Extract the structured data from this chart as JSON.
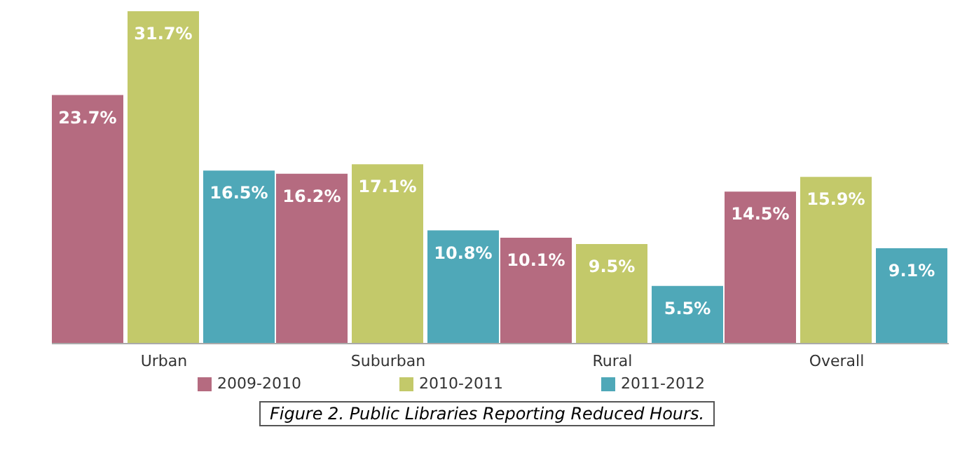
{
  "chart_data": {
    "type": "bar",
    "categories": [
      "Urban",
      "Suburban",
      "Rural",
      "Overall"
    ],
    "series": [
      {
        "name": "2009-2010",
        "color": "#b56b80",
        "values": [
          23.7,
          16.2,
          10.1,
          14.5
        ],
        "value_labels": [
          "23.7%",
          "16.2%",
          "10.1%",
          "14.5%"
        ]
      },
      {
        "name": "2010-2011",
        "color": "#c3c96a",
        "values": [
          31.7,
          17.1,
          9.5,
          15.9
        ],
        "value_labels": [
          "31.7%",
          "17.1%",
          "9.5%",
          "15.9%"
        ]
      },
      {
        "name": "2011-2012",
        "color": "#4fa8b8",
        "values": [
          16.5,
          10.8,
          5.5,
          9.1
        ],
        "value_labels": [
          "16.5%",
          "10.8%",
          "5.5%",
          "9.1%"
        ]
      }
    ],
    "legend": "bottom",
    "grid": false,
    "annotations": [
      "Figure 2. Public Libraries Reporting Reduced Hours."
    ]
  }
}
